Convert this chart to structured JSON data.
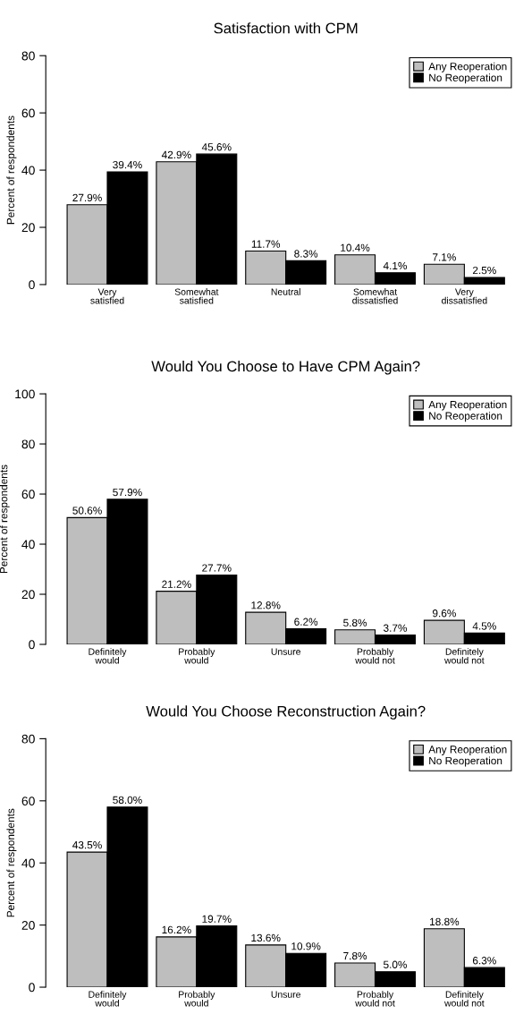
{
  "chart_data": [
    {
      "type": "bar",
      "title": "Satisfaction with CPM",
      "ylabel": "Percent of respondents",
      "categories": [
        "Very\nsatisfied",
        "Somewhat\nsatisfied",
        "Neutral",
        "Somewhat\ndissatisfied",
        "Very\ndissatisfied"
      ],
      "ylim": [
        0,
        80
      ],
      "yticks": [
        0,
        20,
        40,
        60,
        80
      ],
      "legend": "top right",
      "grid": false,
      "series": [
        {
          "name": "Any Reoperation",
          "color": "#bebebe",
          "values": [
            27.9,
            42.9,
            11.7,
            10.4,
            7.1
          ],
          "value_labels": [
            "27.9%",
            "42.9%",
            "11.7%",
            "10.4%",
            "7.1%"
          ]
        },
        {
          "name": "No Reoperation",
          "color": "#000000",
          "values": [
            39.4,
            45.6,
            8.3,
            4.1,
            2.5
          ],
          "value_labels": [
            "39.4%",
            "45.6%",
            "8.3%",
            "4.1%",
            "2.5%"
          ]
        }
      ]
    },
    {
      "type": "bar",
      "title": "Would You Choose to Have CPM Again?",
      "ylabel": "Percent of respondents",
      "categories": [
        "Definitely\nwould",
        "Probably\nwould",
        "Unsure",
        "Probably\nwould not",
        "Definitely\nwould not"
      ],
      "ylim": [
        0,
        100
      ],
      "yticks": [
        0,
        20,
        40,
        60,
        80,
        100
      ],
      "legend": "top right",
      "grid": false,
      "series": [
        {
          "name": "Any Reoperation",
          "color": "#bebebe",
          "values": [
            50.6,
            21.2,
            12.8,
            5.8,
            9.6
          ],
          "value_labels": [
            "50.6%",
            "21.2%",
            "12.8%",
            "5.8%",
            "9.6%"
          ]
        },
        {
          "name": "No Reoperation",
          "color": "#000000",
          "values": [
            57.9,
            27.7,
            6.2,
            3.7,
            4.5
          ],
          "value_labels": [
            "57.9%",
            "27.7%",
            "6.2%",
            "3.7%",
            "4.5%"
          ]
        }
      ]
    },
    {
      "type": "bar",
      "title": "Would You Choose Reconstruction Again?",
      "ylabel": "Percent of respondents",
      "categories": [
        "Definitely\nwould",
        "Probably\nwould",
        "Unsure",
        "Probably\nwould not",
        "Definitely\nwould not"
      ],
      "ylim": [
        0,
        80
      ],
      "yticks": [
        0,
        20,
        40,
        60,
        80
      ],
      "legend": "top right",
      "grid": false,
      "series": [
        {
          "name": "Any Reoperation",
          "color": "#bebebe",
          "values": [
            43.5,
            16.2,
            13.6,
            7.8,
            18.8
          ],
          "value_labels": [
            "43.5%",
            "16.2%",
            "13.6%",
            "7.8%",
            "18.8%"
          ]
        },
        {
          "name": "No Reoperation",
          "color": "#000000",
          "values": [
            58.0,
            19.7,
            10.9,
            5.0,
            6.3
          ],
          "value_labels": [
            "58.0%",
            "19.7%",
            "10.9%",
            "5.0%",
            "6.3%"
          ]
        }
      ]
    }
  ]
}
